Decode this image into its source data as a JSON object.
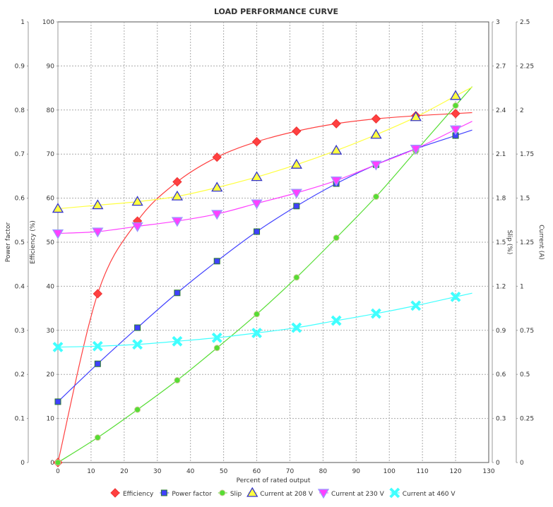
{
  "chart_data": {
    "type": "line",
    "title": "LOAD PERFORMANCE CURVE",
    "xlabel": "Percent of rated output",
    "xlim": [
      0,
      130
    ],
    "xticks": [
      0,
      10,
      20,
      30,
      40,
      50,
      60,
      70,
      80,
      90,
      100,
      110,
      120,
      130
    ],
    "x": [
      0,
      12,
      24,
      36,
      48,
      60,
      72,
      84,
      96,
      108,
      120
    ],
    "axes": {
      "power_factor": {
        "label": "Power factor",
        "range": [
          0,
          1
        ],
        "ticks": [
          "0",
          "0.1",
          "0.2",
          "0.3",
          "0.4",
          "0.5",
          "0.6",
          "0.7",
          "0.8",
          "0.9",
          "1"
        ]
      },
      "efficiency": {
        "label": "Efficiency (%)",
        "range": [
          0,
          100
        ],
        "ticks": [
          "0",
          "10",
          "20",
          "30",
          "40",
          "50",
          "60",
          "70",
          "80",
          "90",
          "100"
        ]
      },
      "slip": {
        "label": "Slip (%)",
        "range": [
          0,
          3
        ],
        "ticks": [
          "0",
          "0.3",
          "0.6",
          "0.9",
          "1.2",
          "1.5",
          "1.8",
          "2.1",
          "2.4",
          "2.7",
          "3"
        ]
      },
      "current": {
        "label": "Current (A)",
        "range": [
          0,
          2.5
        ],
        "ticks": [
          "0",
          "0.25",
          "0.5",
          "0.75",
          "1",
          "1.25",
          "1.5",
          "1.75",
          "2",
          "2.25",
          "2.5"
        ]
      }
    },
    "grid": true,
    "legend_position": "bottom",
    "series": [
      {
        "name": "Efficiency",
        "axis": "efficiency",
        "color": "#ff4040",
        "marker": "diamond",
        "values": [
          0,
          38.3,
          54.8,
          63.7,
          69.3,
          72.8,
          75.2,
          76.9,
          78.0,
          78.7,
          79.2
        ]
      },
      {
        "name": "Power factor",
        "axis": "power_factor",
        "color": "#4040ff",
        "marker": "square",
        "values": [
          0.138,
          0.224,
          0.306,
          0.385,
          0.457,
          0.524,
          0.582,
          0.633,
          0.676,
          0.712,
          0.742
        ]
      },
      {
        "name": "Slip",
        "axis": "slip",
        "color": "#55dd33",
        "marker": "circle",
        "values": [
          0,
          0.17,
          0.36,
          0.56,
          0.78,
          1.01,
          1.26,
          1.53,
          1.81,
          2.12,
          2.43
        ]
      },
      {
        "name": "Current at 208 V",
        "axis": "current",
        "color": "#ffff40",
        "marker": "triangle-up",
        "values": [
          1.44,
          1.46,
          1.48,
          1.51,
          1.56,
          1.62,
          1.69,
          1.77,
          1.86,
          1.96,
          2.08
        ]
      },
      {
        "name": "Current at 230 V",
        "axis": "current",
        "color": "#ff40ff",
        "marker": "triangle-down",
        "values": [
          1.3,
          1.31,
          1.34,
          1.37,
          1.41,
          1.47,
          1.53,
          1.6,
          1.69,
          1.78,
          1.89
        ]
      },
      {
        "name": "Current at 460 V",
        "axis": "current",
        "color": "#40ffff",
        "marker": "x",
        "values": [
          0.655,
          0.66,
          0.67,
          0.688,
          0.708,
          0.735,
          0.765,
          0.805,
          0.845,
          0.89,
          0.94
        ]
      }
    ]
  }
}
